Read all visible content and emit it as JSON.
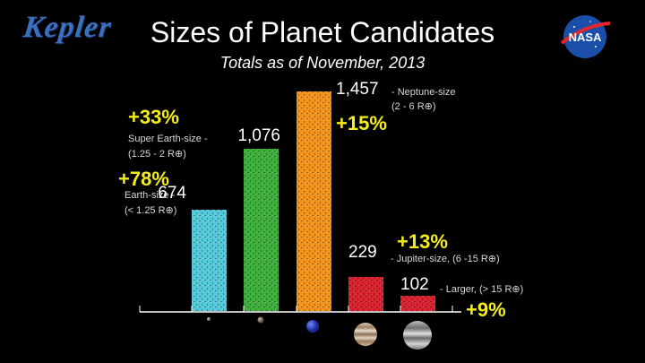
{
  "logos": {
    "left_text": "Kepler",
    "right_text": "NASA"
  },
  "header": {
    "title": "Sizes of Planet Candidates",
    "subtitle": "Totals as of November, 2013"
  },
  "chart_data": {
    "type": "bar",
    "title": "Sizes of Planet Candidates",
    "subtitle": "Totals as of November, 2013",
    "categories": [
      "Earth-size",
      "Super Earth-size",
      "Neptune-size",
      "Jupiter-size",
      "Larger"
    ],
    "values": [
      674,
      1076,
      1457,
      229,
      102
    ],
    "value_labels": [
      "674",
      "1,076",
      "1,457",
      "229",
      "102"
    ],
    "changes": [
      "+78%",
      "+33%",
      "+15%",
      "+13%",
      "+9%"
    ],
    "descriptions": [
      {
        "name": "Earth-size -",
        "range": "(< 1.25 R⊕)"
      },
      {
        "name": "Super Earth-size -",
        "range": "(1.25 - 2 R⊕)"
      },
      {
        "name": "- Neptune-size",
        "range": "(2 - 6 R⊕)"
      },
      {
        "name": "- Jupiter-size, (6 -15 R⊕)",
        "range": ""
      },
      {
        "name": "- Larger, (> 15 R⊕)",
        "range": ""
      }
    ],
    "colors": [
      "#56c8d8",
      "#3fae3f",
      "#f0941f",
      "#d62530",
      "#d62530"
    ],
    "ylim": [
      0,
      1500
    ],
    "grid": false,
    "legend": "none"
  }
}
